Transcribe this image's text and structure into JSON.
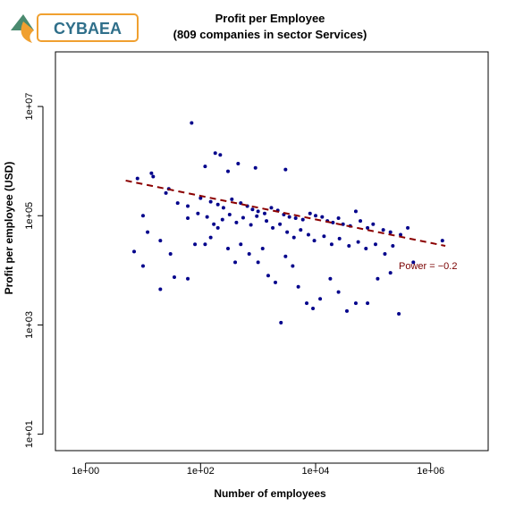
{
  "logo": {
    "text": "CYBAEA"
  },
  "chart_data": {
    "type": "scatter",
    "title": "Profit per Employee",
    "subtitle": "(809 companies in sector Services)",
    "xlabel": "Number of employees",
    "ylabel": "Profit per employee (USD)",
    "x_scale": "log10",
    "y_scale": "log10",
    "xlim": [
      0.3,
      10000000
    ],
    "ylim": [
      5,
      100000000
    ],
    "x_ticks": [
      1,
      100,
      10000,
      1000000
    ],
    "x_tick_labels": [
      "1e+00",
      "1e+02",
      "1e+04",
      "1e+06"
    ],
    "y_ticks": [
      10,
      1000,
      100000,
      10000000
    ],
    "y_tick_labels": [
      "1e+01",
      "1e+03",
      "1e+05",
      "1e+07"
    ],
    "grid": false,
    "colors": {
      "points": "#00008b",
      "fit": "#8b0000"
    },
    "fit_line": {
      "label": "Power = −0.2",
      "x": [
        5,
        1800000
      ],
      "y": [
        440000,
        28000
      ]
    },
    "points": [
      {
        "x": 70,
        "y": 5000000
      },
      {
        "x": 180,
        "y": 1400000
      },
      {
        "x": 220,
        "y": 1300000
      },
      {
        "x": 120,
        "y": 800000
      },
      {
        "x": 450,
        "y": 900000
      },
      {
        "x": 300,
        "y": 650000
      },
      {
        "x": 900,
        "y": 750000
      },
      {
        "x": 3000,
        "y": 700000
      },
      {
        "x": 14,
        "y": 600000
      },
      {
        "x": 15,
        "y": 520000
      },
      {
        "x": 8,
        "y": 480000
      },
      {
        "x": 28,
        "y": 310000
      },
      {
        "x": 25,
        "y": 260000
      },
      {
        "x": 40,
        "y": 170000
      },
      {
        "x": 60,
        "y": 150000
      },
      {
        "x": 100,
        "y": 210000
      },
      {
        "x": 150,
        "y": 180000
      },
      {
        "x": 200,
        "y": 160000
      },
      {
        "x": 250,
        "y": 140000
      },
      {
        "x": 350,
        "y": 200000
      },
      {
        "x": 500,
        "y": 170000
      },
      {
        "x": 650,
        "y": 150000
      },
      {
        "x": 800,
        "y": 130000
      },
      {
        "x": 1000,
        "y": 120000
      },
      {
        "x": 1300,
        "y": 110000
      },
      {
        "x": 1700,
        "y": 140000
      },
      {
        "x": 2200,
        "y": 125000
      },
      {
        "x": 2800,
        "y": 105000
      },
      {
        "x": 3500,
        "y": 95000
      },
      {
        "x": 4500,
        "y": 90000
      },
      {
        "x": 6000,
        "y": 85000
      },
      {
        "x": 8000,
        "y": 110000
      },
      {
        "x": 10000,
        "y": 100000
      },
      {
        "x": 13000,
        "y": 95000
      },
      {
        "x": 16000,
        "y": 80000
      },
      {
        "x": 20000,
        "y": 75000
      },
      {
        "x": 25000,
        "y": 90000
      },
      {
        "x": 30000,
        "y": 70000
      },
      {
        "x": 40000,
        "y": 65000
      },
      {
        "x": 50000,
        "y": 120000
      },
      {
        "x": 60000,
        "y": 80000
      },
      {
        "x": 80000,
        "y": 60000
      },
      {
        "x": 100000,
        "y": 70000
      },
      {
        "x": 150000,
        "y": 55000
      },
      {
        "x": 200000,
        "y": 50000
      },
      {
        "x": 300000,
        "y": 45000
      },
      {
        "x": 400000,
        "y": 60000
      },
      {
        "x": 500000,
        "y": 14000
      },
      {
        "x": 1600000,
        "y": 35000
      },
      {
        "x": 10,
        "y": 100000
      },
      {
        "x": 12,
        "y": 50000
      },
      {
        "x": 7,
        "y": 22000
      },
      {
        "x": 10,
        "y": 12000
      },
      {
        "x": 20,
        "y": 35000
      },
      {
        "x": 20,
        "y": 4500
      },
      {
        "x": 30,
        "y": 20000
      },
      {
        "x": 35,
        "y": 7500
      },
      {
        "x": 60,
        "y": 7000
      },
      {
        "x": 80,
        "y": 30000
      },
      {
        "x": 120,
        "y": 30000
      },
      {
        "x": 150,
        "y": 40000
      },
      {
        "x": 200,
        "y": 60000
      },
      {
        "x": 300,
        "y": 25000
      },
      {
        "x": 400,
        "y": 14000
      },
      {
        "x": 500,
        "y": 30000
      },
      {
        "x": 700,
        "y": 20000
      },
      {
        "x": 1000,
        "y": 14000
      },
      {
        "x": 1200,
        "y": 25000
      },
      {
        "x": 1500,
        "y": 8000
      },
      {
        "x": 2000,
        "y": 6000
      },
      {
        "x": 2500,
        "y": 1100
      },
      {
        "x": 3000,
        "y": 18000
      },
      {
        "x": 4000,
        "y": 12000
      },
      {
        "x": 5000,
        "y": 5000
      },
      {
        "x": 7000,
        "y": 2500
      },
      {
        "x": 9000,
        "y": 2000
      },
      {
        "x": 12000,
        "y": 3000
      },
      {
        "x": 18000,
        "y": 7000
      },
      {
        "x": 25000,
        "y": 4000
      },
      {
        "x": 35000,
        "y": 1800
      },
      {
        "x": 50000,
        "y": 2500
      },
      {
        "x": 80000,
        "y": 2500
      },
      {
        "x": 120000,
        "y": 7000
      },
      {
        "x": 200000,
        "y": 9000
      },
      {
        "x": 280000,
        "y": 1600
      },
      {
        "x": 60,
        "y": 90000
      },
      {
        "x": 90,
        "y": 110000
      },
      {
        "x": 130,
        "y": 95000
      },
      {
        "x": 170,
        "y": 70000
      },
      {
        "x": 240,
        "y": 85000
      },
      {
        "x": 320,
        "y": 105000
      },
      {
        "x": 420,
        "y": 75000
      },
      {
        "x": 550,
        "y": 92000
      },
      {
        "x": 750,
        "y": 68000
      },
      {
        "x": 950,
        "y": 98000
      },
      {
        "x": 1400,
        "y": 80000
      },
      {
        "x": 1800,
        "y": 60000
      },
      {
        "x": 2400,
        "y": 70000
      },
      {
        "x": 3200,
        "y": 50000
      },
      {
        "x": 4200,
        "y": 40000
      },
      {
        "x": 5500,
        "y": 55000
      },
      {
        "x": 7500,
        "y": 45000
      },
      {
        "x": 9500,
        "y": 35000
      },
      {
        "x": 14000,
        "y": 42000
      },
      {
        "x": 19000,
        "y": 30000
      },
      {
        "x": 26000,
        "y": 38000
      },
      {
        "x": 38000,
        "y": 28000
      },
      {
        "x": 55000,
        "y": 33000
      },
      {
        "x": 75000,
        "y": 25000
      },
      {
        "x": 110000,
        "y": 30000
      },
      {
        "x": 160000,
        "y": 20000
      },
      {
        "x": 220000,
        "y": 28000
      }
    ]
  }
}
